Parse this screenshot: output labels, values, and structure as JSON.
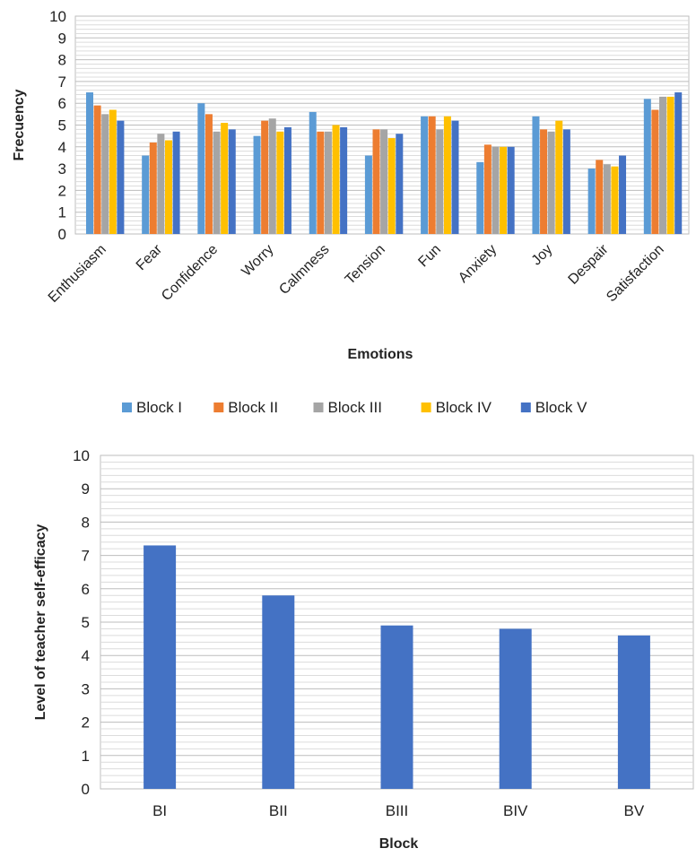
{
  "chart_data": [
    {
      "type": "bar",
      "title": "",
      "xlabel": "Emotions",
      "ylabel": "Frecuency",
      "ylim": [
        0,
        10
      ],
      "yticks": [
        0,
        1,
        2,
        3,
        4,
        5,
        6,
        7,
        8,
        9,
        10
      ],
      "grid": true,
      "legend_position": "bottom",
      "categories": [
        "Enthusiasm",
        "Fear",
        "Confidence",
        "Worry",
        "Calmness",
        "Tension",
        "Fun",
        "Anxiety",
        "Joy",
        "Despair",
        "Satisfaction"
      ],
      "series": [
        {
          "name": "Block I",
          "color": "#5B9BD5",
          "values": [
            6.5,
            3.6,
            6.0,
            4.5,
            5.6,
            3.6,
            5.4,
            3.3,
            5.4,
            3.0,
            6.2
          ]
        },
        {
          "name": "Block II",
          "color": "#ED7D31",
          "values": [
            5.9,
            4.2,
            5.5,
            5.2,
            4.7,
            4.8,
            5.4,
            4.1,
            4.8,
            3.4,
            5.7
          ]
        },
        {
          "name": "Block III",
          "color": "#A5A5A5",
          "values": [
            5.5,
            4.6,
            4.7,
            5.3,
            4.7,
            4.8,
            4.8,
            4.0,
            4.7,
            3.2,
            6.3
          ]
        },
        {
          "name": "Block IV",
          "color": "#FFC000",
          "values": [
            5.7,
            4.3,
            5.1,
            4.7,
            5.0,
            4.4,
            5.4,
            4.0,
            5.2,
            3.1,
            6.3
          ]
        },
        {
          "name": "Block V",
          "color": "#4472C4",
          "values": [
            5.2,
            4.7,
            4.8,
            4.9,
            4.9,
            4.6,
            5.2,
            4.0,
            4.8,
            3.6,
            6.5
          ]
        }
      ]
    },
    {
      "type": "bar",
      "title": "",
      "xlabel": "Block",
      "ylabel": "Level of teacher self-efficacy",
      "ylim": [
        0,
        10
      ],
      "yticks": [
        0,
        1,
        2,
        3,
        4,
        5,
        6,
        7,
        8,
        9,
        10
      ],
      "grid": true,
      "categories": [
        "BI",
        "BII",
        "BIII",
        "BIV",
        "BV"
      ],
      "series": [
        {
          "color": "#4472C4",
          "values": [
            7.3,
            5.8,
            4.9,
            4.8,
            4.6
          ]
        }
      ]
    }
  ]
}
